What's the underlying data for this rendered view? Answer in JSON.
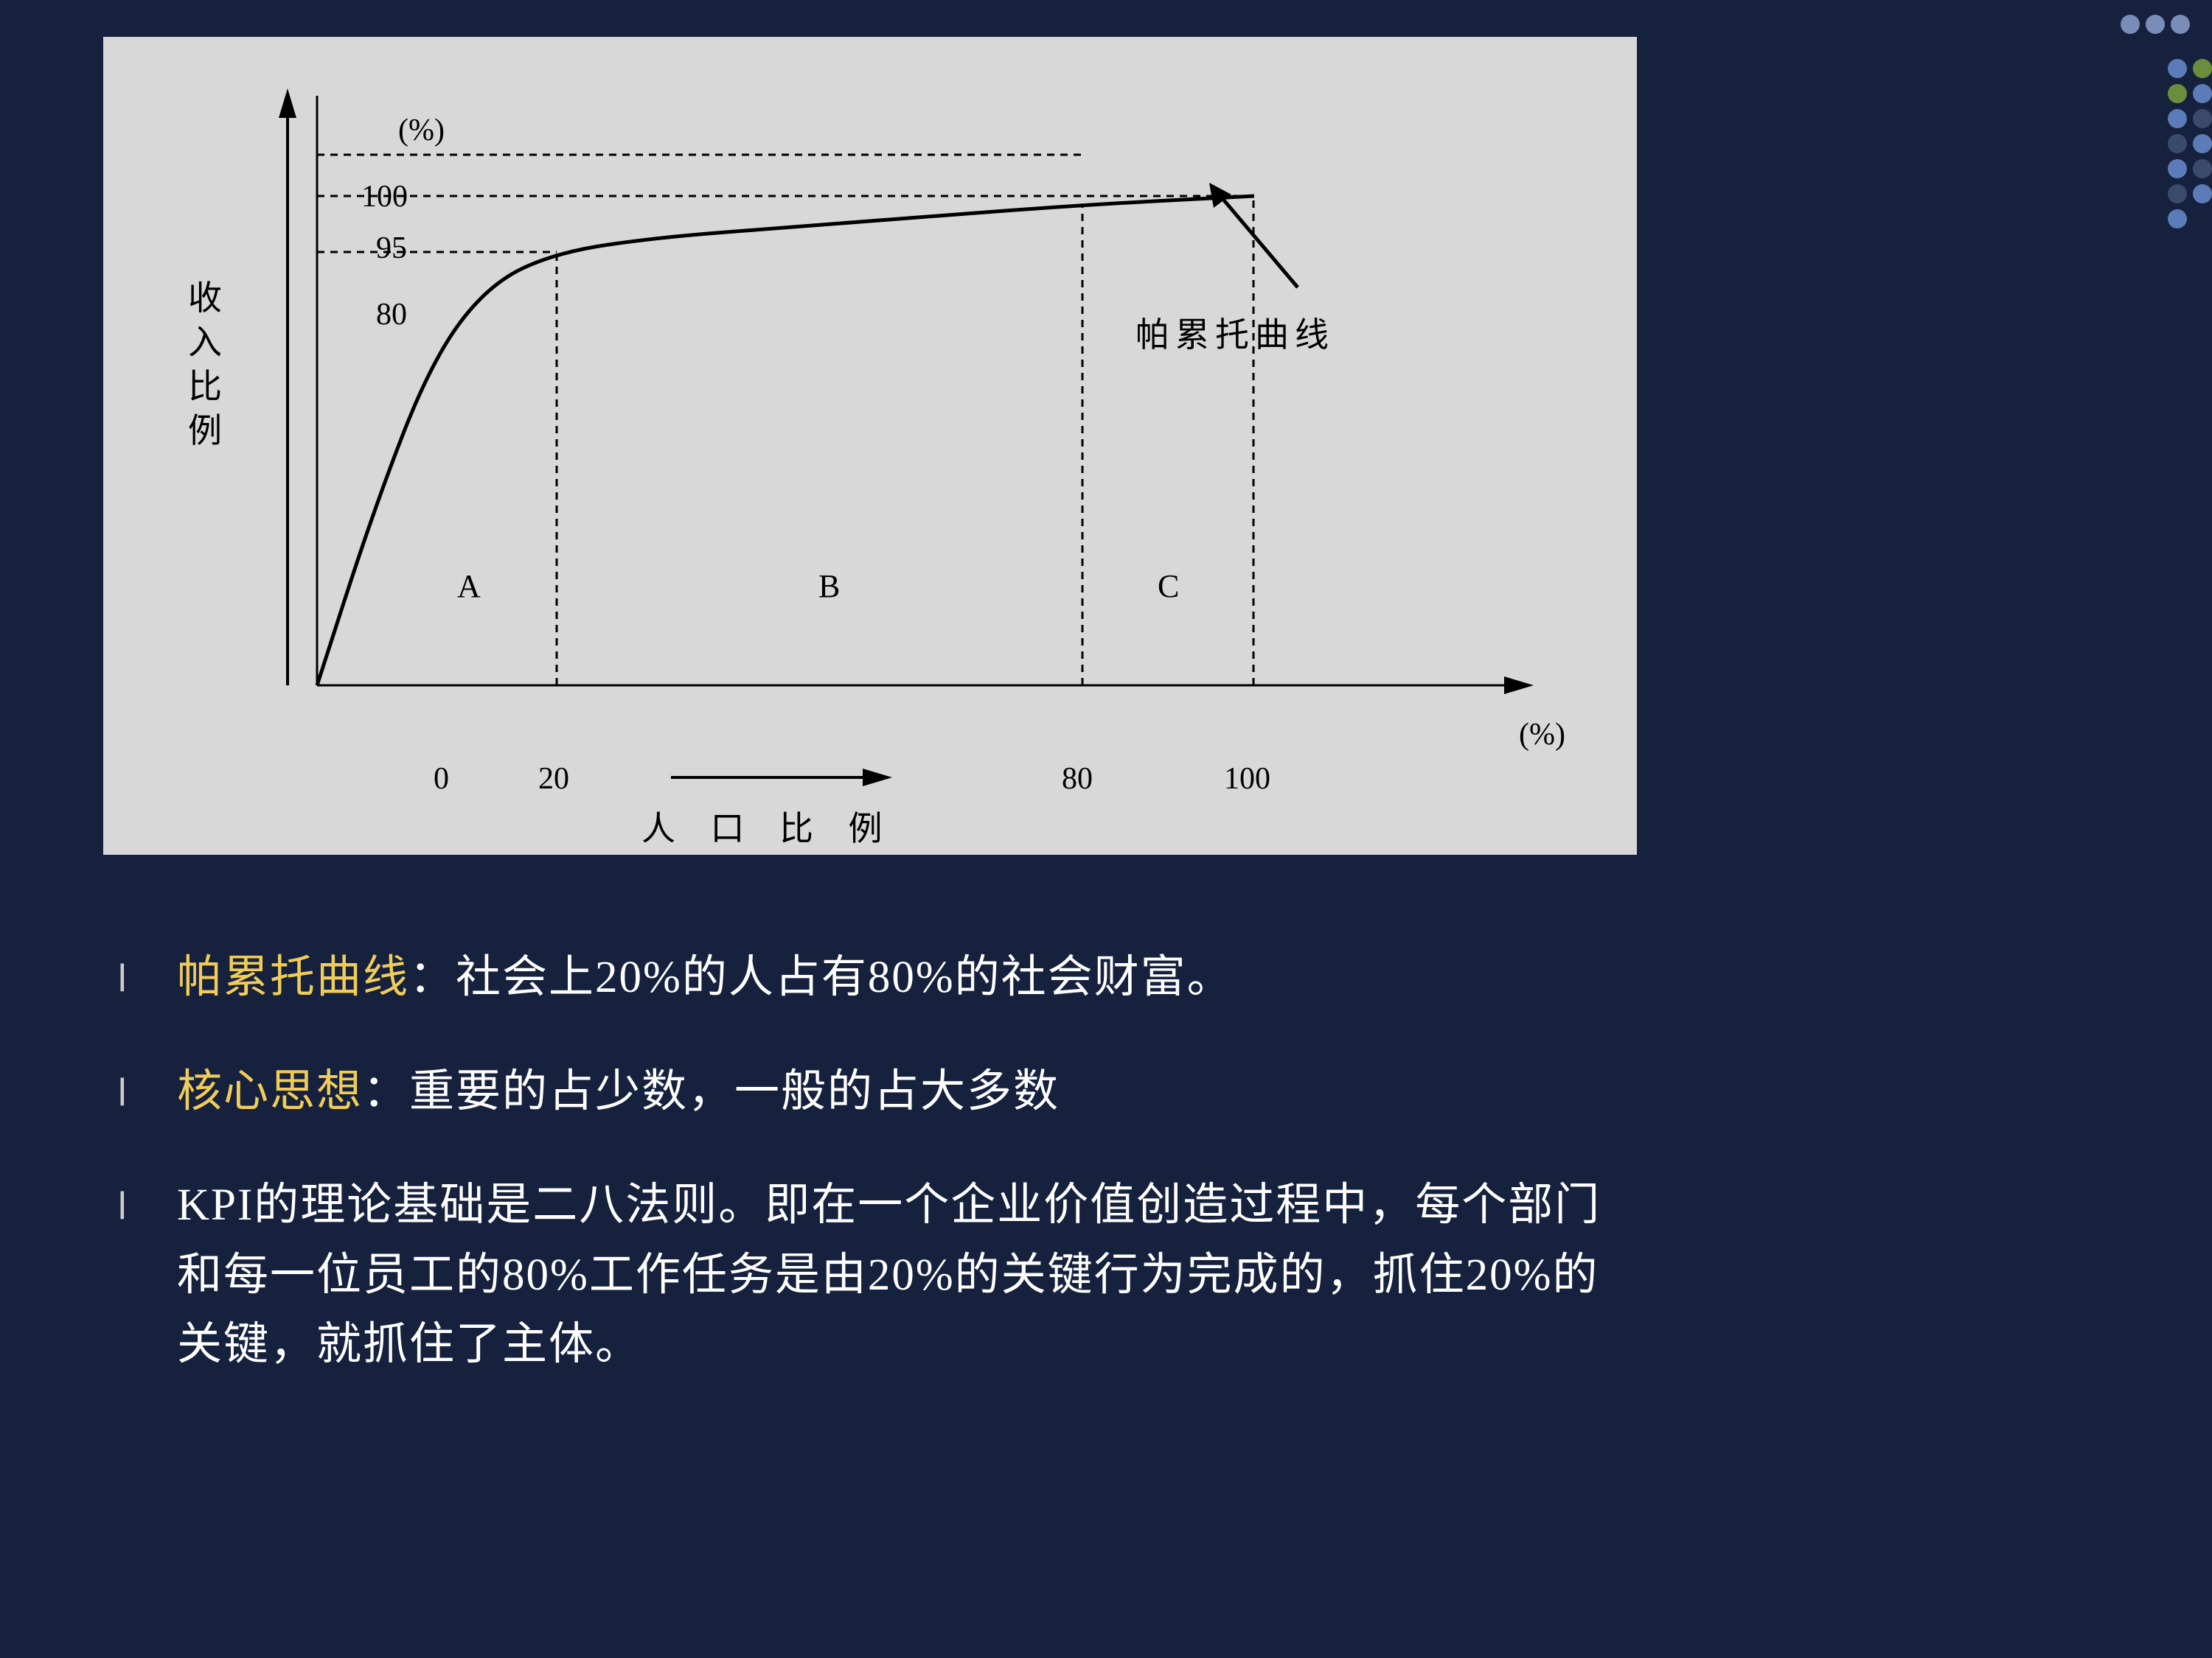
{
  "chart": {
    "type": "pareto-curve",
    "background_color": "#d8d8d8",
    "axis_color": "#000000",
    "y_axis_label": "收\n入\n比\n例",
    "y_axis_unit": "(%)",
    "x_axis_label": "人 口 比 例",
    "x_axis_unit": "(%)",
    "y_ticks": [
      "80",
      "95",
      "100"
    ],
    "y_tick_positions": [
      0.62,
      0.735,
      0.775
    ],
    "x_ticks": [
      "0",
      "20",
      "80",
      "100"
    ],
    "x_tick_positions": [
      0.0,
      0.21,
      0.67,
      0.82
    ],
    "curve_label": "帕累托曲线",
    "zone_labels": [
      "A",
      "B",
      "C"
    ],
    "zone_positions": [
      0.12,
      0.44,
      0.74
    ],
    "curve_points": [
      [
        0,
        0
      ],
      [
        0.05,
        0.3
      ],
      [
        0.1,
        0.55
      ],
      [
        0.15,
        0.68
      ],
      [
        0.21,
        0.735
      ],
      [
        0.3,
        0.76
      ],
      [
        0.4,
        0.775
      ],
      [
        0.5,
        0.79
      ],
      [
        0.67,
        0.815
      ],
      [
        0.82,
        0.83
      ]
    ],
    "font_family": "SimSun",
    "label_fontsize_pt": 28,
    "tick_fontsize_pt": 28
  },
  "bullets": [
    {
      "highlight": "帕累托曲线",
      "rest": "：社会上20%的人占有80%的社会财富。"
    },
    {
      "highlight": "核心思想",
      "rest": "：重要的占少数，一般的占大多数"
    },
    {
      "highlight": "",
      "rest": "KPI的理论基础是二八法则。即在一个企业价值创造过程中，每个部门和每一位员工的80%工作任务是由20%的关键行为完成的，抓住20%的关键，就抓住了主体。"
    }
  ],
  "colors": {
    "slide_bg": "#16213e",
    "chart_bg": "#d8d8d8",
    "text_white": "#ffffff",
    "text_highlight": "#f0cc5a",
    "bullet_marker": "#cccccc",
    "axis": "#000000"
  }
}
